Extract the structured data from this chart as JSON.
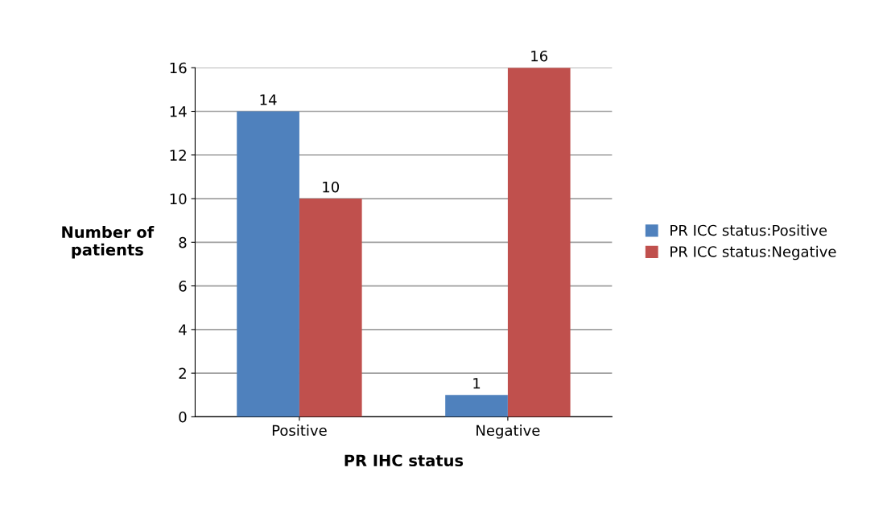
{
  "chart_data": {
    "type": "bar",
    "xlabel": "PR IHC status",
    "ylabel": "Number of\npatients",
    "categories": [
      "Positive",
      "Negative"
    ],
    "series": [
      {
        "name": "PR ICC status:Positive",
        "color": "#4f81bd",
        "values": [
          14,
          1
        ]
      },
      {
        "name": "PR ICC status:Negative",
        "color": "#c0504d",
        "values": [
          10,
          16
        ]
      }
    ],
    "ylim": [
      0,
      16
    ],
    "yticks": [
      0,
      2,
      4,
      6,
      8,
      10,
      12,
      14,
      16
    ],
    "grid": "y",
    "legend": "right",
    "data_labels": true
  }
}
